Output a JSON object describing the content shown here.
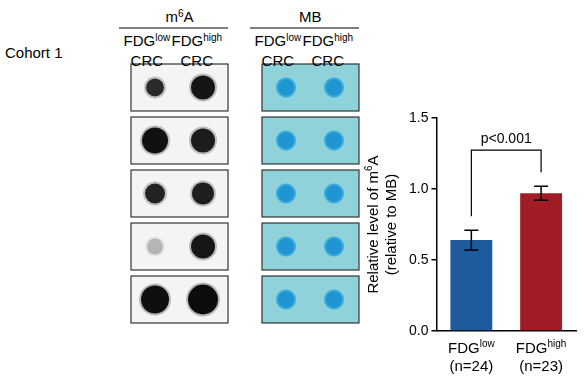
{
  "panel_label": "Cohort 1",
  "blots": {
    "headers": [
      [
        {
          "text": "m"
        },
        {
          "sup": "6"
        },
        {
          "text": "A"
        }
      ],
      [
        {
          "text": "MB"
        }
      ]
    ],
    "columns": [
      [
        [
          {
            "text": "FDG"
          },
          {
            "sup": "low"
          }
        ],
        [
          {
            "text": "CRC"
          }
        ]
      ],
      [
        [
          {
            "text": "FDG"
          },
          {
            "sup": "high"
          }
        ],
        [
          {
            "text": "CRC"
          }
        ]
      ]
    ],
    "rows": 5
  },
  "chart_data": {
    "type": "bar",
    "categories": [
      [
        [
          {
            "text": "FDG"
          },
          {
            "sup": "low"
          }
        ],
        [
          {
            "text": "(n=24)"
          }
        ]
      ],
      [
        [
          {
            "text": "FDG"
          },
          {
            "sup": "high"
          }
        ],
        [
          {
            "text": "(n=23)"
          }
        ]
      ]
    ],
    "values": [
      0.64,
      0.97
    ],
    "errors": [
      0.07,
      0.05
    ],
    "colors": [
      "#1e5b9c",
      "#a11d25"
    ],
    "y_label": [
      [
        {
          "text": "Relative level of m"
        },
        {
          "sup": "6"
        },
        {
          "text": "A"
        }
      ],
      [
        {
          "text": "(relative to MB)"
        }
      ]
    ],
    "ylim": [
      0,
      1.5
    ],
    "yticks": [
      {
        "value": 0,
        "label": "0.0"
      },
      0.5,
      {
        "value": 1,
        "label": "1.0"
      },
      1.5
    ],
    "annotation": {
      "text": "p<0.001"
    },
    "grid": false,
    "legend": false
  }
}
